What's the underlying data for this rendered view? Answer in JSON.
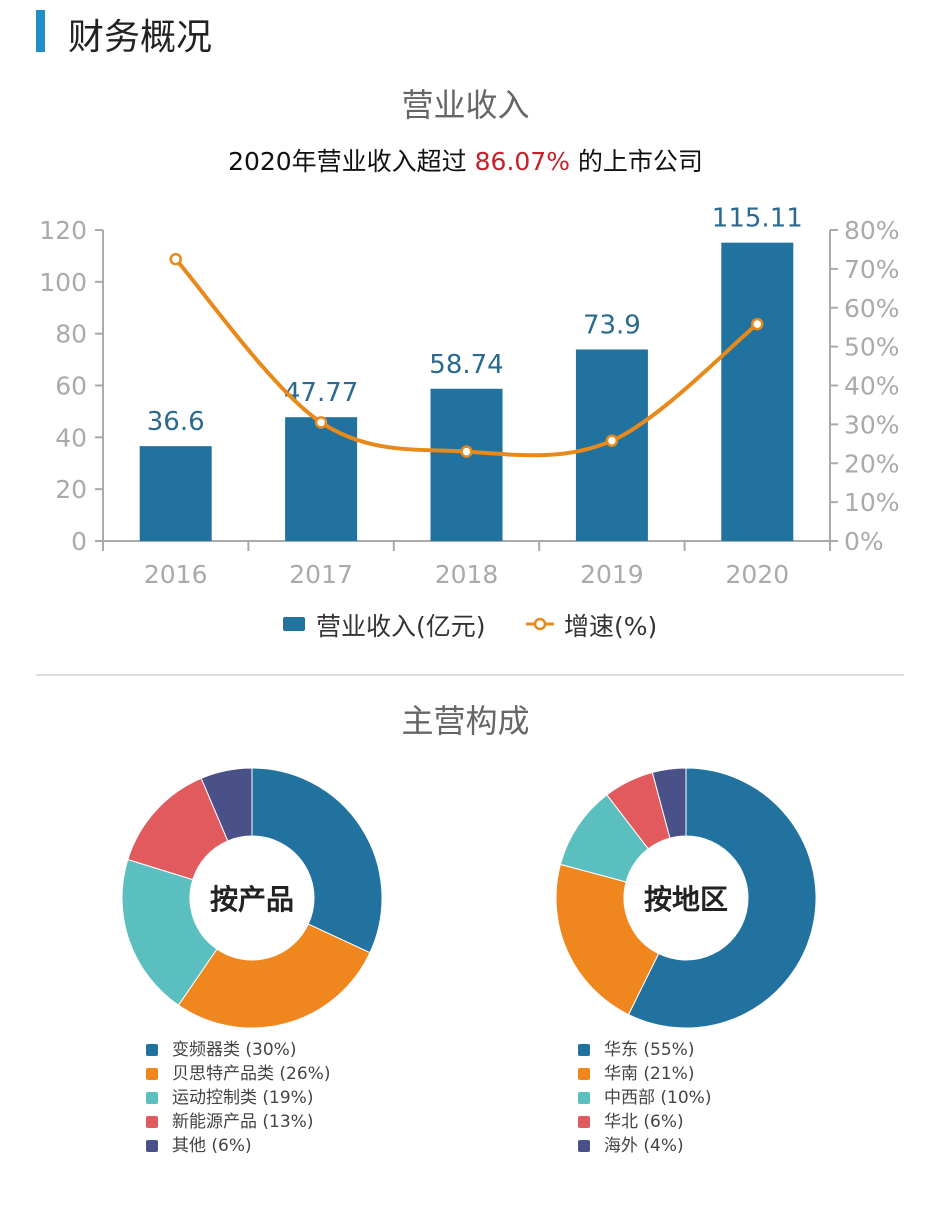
{
  "header": {
    "title": "财务概况"
  },
  "revenue_section": {
    "title": "营业收入",
    "subtitle_prefix": "2020年营业收入超过 ",
    "subtitle_highlight": "86.07%",
    "subtitle_suffix": " 的上市公司"
  },
  "composition_section": {
    "title": "主营构成"
  },
  "colors": {
    "bar": "#22729f",
    "line": "#e8891c",
    "accent": "#1f8fc6",
    "highlight": "#c8202a"
  },
  "chart_data": [
    {
      "type": "bar+line",
      "categories": [
        "2016",
        "2017",
        "2018",
        "2019",
        "2020"
      ],
      "series": [
        {
          "name": "营业收入(亿元)",
          "type": "bar",
          "axis": "left",
          "values": [
            36.6,
            47.77,
            58.74,
            73.9,
            115.11
          ],
          "labels": [
            "36.6",
            "47.77",
            "58.74",
            "73.9",
            "115.11"
          ]
        },
        {
          "name": "增速(%)",
          "type": "line",
          "axis": "right",
          "values": [
            72.5,
            30.5,
            23.0,
            25.8,
            55.8
          ]
        }
      ],
      "left_axis": {
        "ylim": [
          0,
          120
        ],
        "ticks": [
          "0",
          "20",
          "40",
          "60",
          "80",
          "100",
          "120"
        ]
      },
      "right_axis": {
        "ylim": [
          0,
          80
        ],
        "ticks": [
          "0%",
          "10%",
          "20%",
          "30%",
          "40%",
          "50%",
          "60%",
          "70%",
          "80%"
        ]
      },
      "legend": "bottom",
      "grid": false
    },
    {
      "type": "pie",
      "donut": true,
      "center_label": "按产品",
      "slices": [
        {
          "name": "变频器类",
          "value": 30,
          "label": "变频器类 (30%)",
          "color": "#22729f"
        },
        {
          "name": "贝思特产品类",
          "value": 26,
          "label": "贝思特产品类 (26%)",
          "color": "#f0861e"
        },
        {
          "name": "运动控制类",
          "value": 19,
          "label": "运动控制类 (19%)",
          "color": "#5cbfbf"
        },
        {
          "name": "新能源产品",
          "value": 13,
          "label": "新能源产品 (13%)",
          "color": "#e05a5e"
        },
        {
          "name": "其他",
          "value": 6,
          "label": "其他 (6%)",
          "color": "#4a5088"
        }
      ]
    },
    {
      "type": "pie",
      "donut": true,
      "center_label": "按地区",
      "slices": [
        {
          "name": "华东",
          "value": 55,
          "label": "华东 (55%)",
          "color": "#22729f"
        },
        {
          "name": "华南",
          "value": 21,
          "label": "华南 (21%)",
          "color": "#f0861e"
        },
        {
          "name": "中西部",
          "value": 10,
          "label": "中西部 (10%)",
          "color": "#5cbfbf"
        },
        {
          "name": "华北",
          "value": 6,
          "label": "华北 (6%)",
          "color": "#e05a5e"
        },
        {
          "name": "海外",
          "value": 4,
          "label": "海外 (4%)",
          "color": "#4a5088"
        }
      ]
    }
  ]
}
